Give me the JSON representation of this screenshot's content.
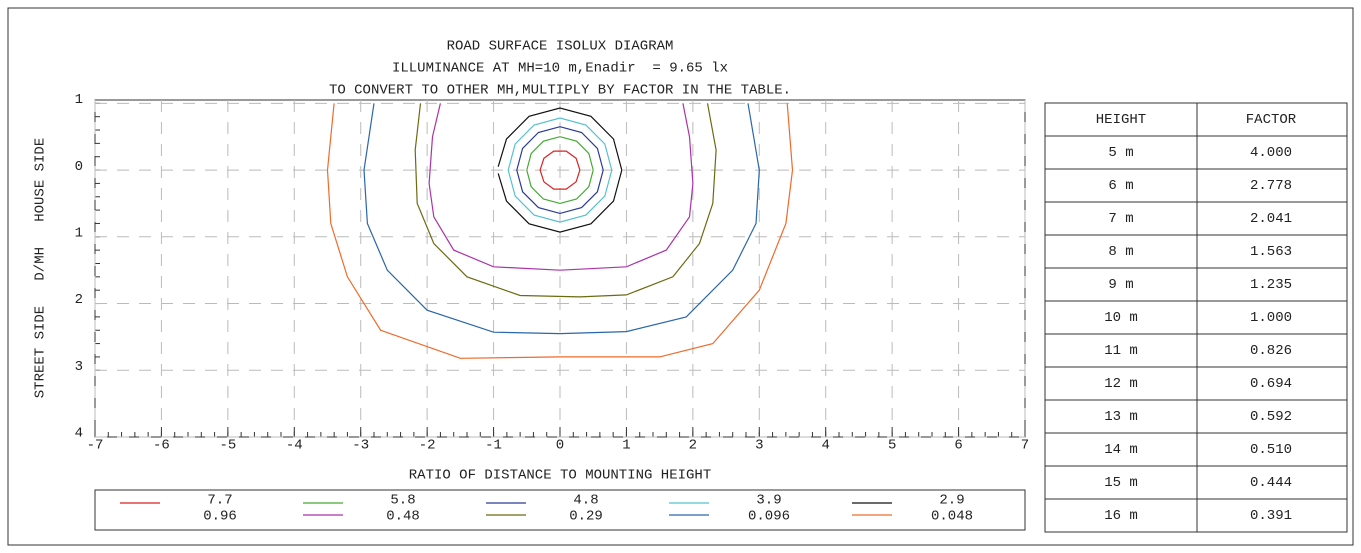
{
  "chart_data": {
    "type": "contour",
    "title": [
      "ROAD SURFACE ISOLUX DIAGRAM",
      "ILLUMINANCE AT MH=10 m,Enadir  = 9.65 lx",
      "TO CONVERT TO OTHER MH,MULTIPLY BY FACTOR IN THE TABLE."
    ],
    "xlabel": "RATIO OF DISTANCE TO MOUNTING HEIGHT",
    "ylabel": "STREET SIDE   D/MH   HOUSE SIDE",
    "xlim": [
      -7,
      7
    ],
    "xticks": [
      -7,
      -6,
      -5,
      -4,
      -3,
      -2,
      -1,
      0,
      1,
      2,
      3,
      4,
      5,
      6,
      7
    ],
    "ylim": [
      -1.05,
      4
    ],
    "yticks": [
      {
        "value": -1,
        "label": "1"
      },
      0,
      1,
      2,
      3,
      4
    ],
    "grid": true,
    "series": [
      {
        "name": "7.7",
        "color": "#dd2222",
        "x": [
          0.3,
          0.243,
          0.093,
          -0.093,
          -0.243,
          -0.3,
          -0.243,
          -0.093,
          0.093,
          0.243,
          0.3
        ],
        "y": [
          0,
          0.176,
          0.285,
          0.285,
          0.176,
          0,
          -0.176,
          -0.285,
          -0.285,
          -0.176,
          0
        ]
      },
      {
        "name": "5.8",
        "color": "#44aa33",
        "x": [
          0.5,
          0.433,
          0.25,
          0,
          -0.25,
          -0.433,
          -0.5,
          -0.433,
          -0.25,
          0,
          0.25,
          0.433,
          0.5
        ],
        "y": [
          0,
          0.25,
          0.433,
          0.5,
          0.433,
          0.25,
          0,
          -0.25,
          -0.433,
          -0.5,
          -0.433,
          -0.25,
          0
        ]
      },
      {
        "name": "4.8",
        "color": "#2a3a9a",
        "x": [
          0.65,
          0.563,
          0.325,
          0,
          -0.325,
          -0.563,
          -0.65,
          -0.563,
          -0.325,
          0,
          0.325,
          0.563,
          0.65
        ],
        "y": [
          0,
          0.325,
          0.563,
          0.65,
          0.563,
          0.325,
          0,
          -0.325,
          -0.563,
          -0.65,
          -0.563,
          -0.325,
          0
        ]
      },
      {
        "name": "3.9",
        "color": "#55c0d0",
        "x": [
          0.78,
          0.675,
          0.39,
          0,
          -0.39,
          -0.675,
          -0.78,
          -0.675,
          -0.39,
          0,
          0.39,
          0.675,
          0.78
        ],
        "y": [
          0,
          0.39,
          0.675,
          0.78,
          0.675,
          0.39,
          0,
          -0.39,
          -0.675,
          -0.78,
          -0.675,
          -0.39,
          0
        ]
      },
      {
        "name": "2.9",
        "color": "#111111",
        "x": [
          -0.93,
          -0.805,
          -0.465,
          0,
          0.465,
          0.805,
          0.93,
          0.805,
          0.465,
          0,
          -0.465,
          -0.805,
          -0.93
        ],
        "y": [
          0.05,
          0.465,
          0.805,
          0.93,
          0.805,
          0.465,
          0,
          -0.465,
          -0.805,
          -0.93,
          -0.805,
          -0.465,
          -0.05
        ]
      },
      {
        "name": "0.96",
        "x": [],
        "y": []
      },
      {
        "name": "0.48",
        "color": "#aa33aa",
        "x": [
          -1.8,
          -1.92,
          -1.97,
          -1.9,
          -1.6,
          -1.0,
          0,
          1.0,
          1.6,
          1.95,
          2.0,
          1.95,
          1.85
        ],
        "y": [
          -1,
          -0.5,
          0.2,
          0.7,
          1.2,
          1.45,
          1.5,
          1.45,
          1.2,
          0.7,
          0.2,
          -0.5,
          -1
        ]
      },
      {
        "name": "0.29",
        "color": "#6b6b12",
        "x": [
          -2.1,
          -2.18,
          -2.15,
          -1.9,
          -1.4,
          -0.6,
          0.3,
          1.0,
          1.7,
          2.1,
          2.3,
          2.35,
          2.22
        ],
        "y": [
          -1,
          -0.3,
          0.5,
          1.1,
          1.6,
          1.88,
          1.9,
          1.87,
          1.6,
          1.1,
          0.5,
          -0.3,
          -1
        ]
      },
      {
        "name": "0.096",
        "color": "#2a66aa",
        "x": [
          -2.8,
          -2.95,
          -2.9,
          -2.6,
          -2.0,
          -1.0,
          0,
          1.0,
          1.9,
          2.6,
          2.95,
          3.0,
          2.83
        ],
        "y": [
          -1,
          0,
          0.8,
          1.5,
          2.1,
          2.43,
          2.45,
          2.42,
          2.2,
          1.5,
          0.8,
          0,
          -1
        ]
      },
      {
        "name": "0.048",
        "color": "#f06a2a",
        "x": [
          -3.4,
          -3.5,
          -3.45,
          -3.2,
          -2.7,
          -1.5,
          0,
          1.5,
          2.3,
          3.0,
          3.4,
          3.5,
          3.42
        ],
        "y": [
          -1,
          0,
          0.8,
          1.6,
          2.4,
          2.82,
          2.8,
          2.8,
          2.6,
          1.8,
          0.8,
          0,
          -1
        ]
      }
    ]
  },
  "table": {
    "header": [
      "HEIGHT",
      "FACTOR"
    ],
    "rows": [
      [
        "5 m",
        "4.000"
      ],
      [
        "6 m",
        "2.778"
      ],
      [
        "7 m",
        "2.041"
      ],
      [
        "8 m",
        "1.563"
      ],
      [
        "9 m",
        "1.235"
      ],
      [
        "10 m",
        "1.000"
      ],
      [
        "11 m",
        "0.826"
      ],
      [
        "12 m",
        "0.694"
      ],
      [
        "13 m",
        "0.592"
      ],
      [
        "14 m",
        "0.510"
      ],
      [
        "15 m",
        "0.444"
      ],
      [
        "16 m",
        "0.391"
      ]
    ]
  }
}
